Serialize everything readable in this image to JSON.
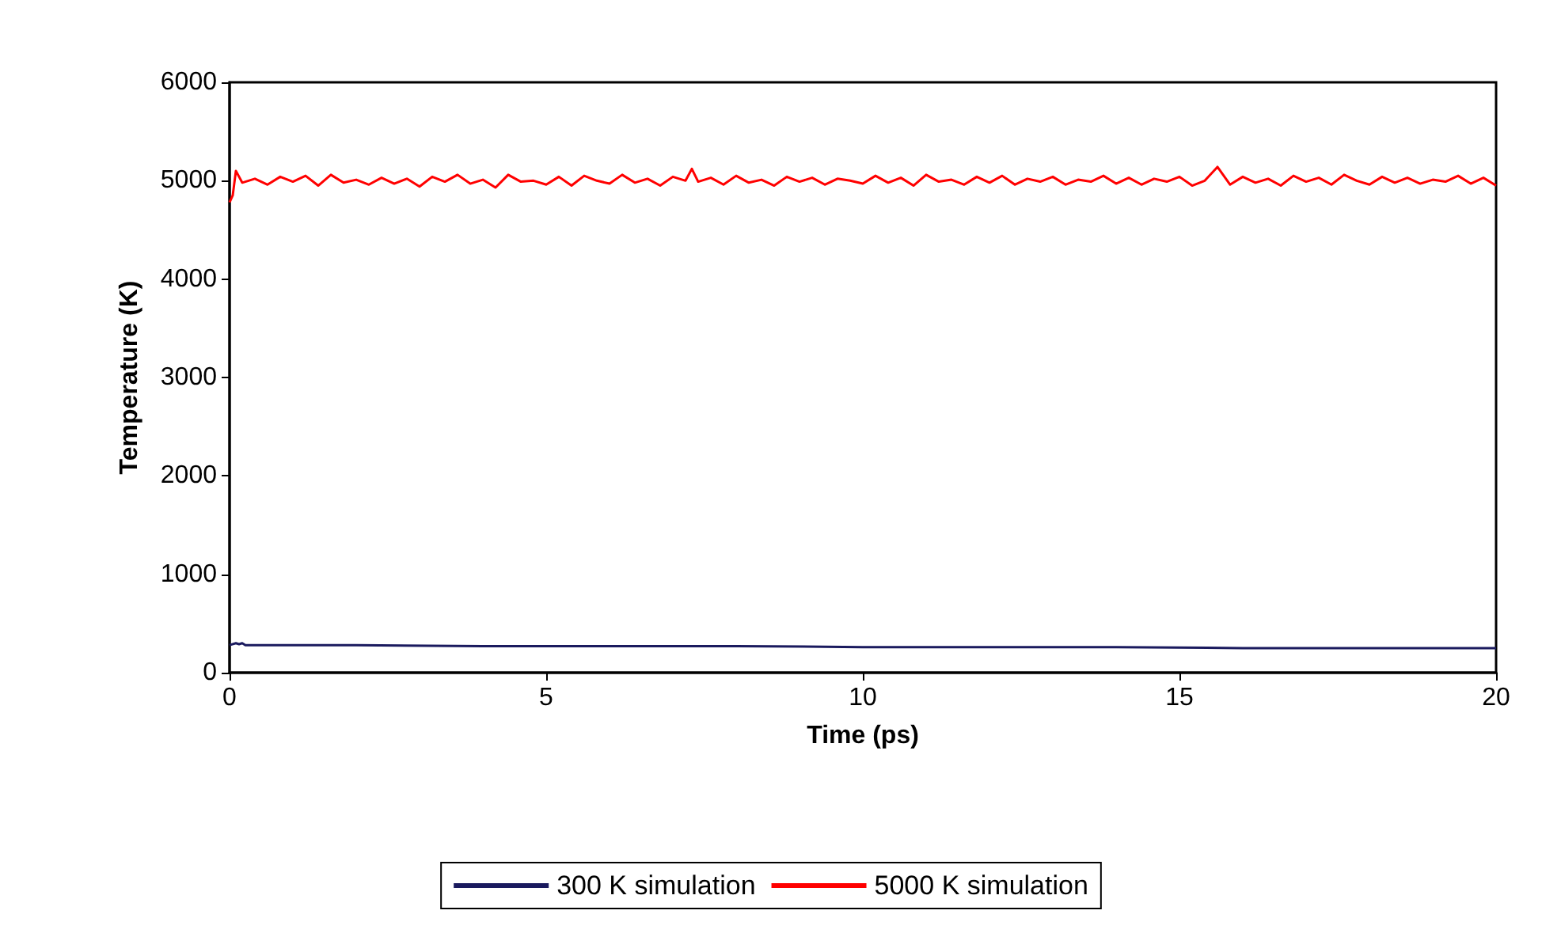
{
  "chart_data": {
    "type": "line",
    "xlabel": "Time (ps)",
    "ylabel": "Temperature (K)",
    "xlim": [
      0,
      20
    ],
    "ylim": [
      0,
      6000
    ],
    "xticks": [
      0,
      5,
      10,
      15,
      20
    ],
    "yticks": [
      0,
      1000,
      2000,
      3000,
      4000,
      5000,
      6000
    ],
    "grid": false,
    "legend": "bottom",
    "marker": "none",
    "line_style": "solid",
    "series": [
      {
        "name": "300 K simulation",
        "color": "#1a1a5e",
        "x": [
          0,
          0.1,
          0.15,
          0.2,
          0.25,
          0.3,
          1,
          2,
          4,
          6,
          8,
          10,
          12,
          14,
          16,
          18,
          20
        ],
        "values": [
          280,
          300,
          290,
          300,
          280,
          280,
          280,
          280,
          270,
          270,
          270,
          260,
          260,
          260,
          250,
          250,
          250
        ]
      },
      {
        "name": "5000 K simulation",
        "color": "#ff0000",
        "x": [
          0,
          0.05,
          0.1,
          0.2,
          0.4,
          0.6,
          0.8,
          1,
          1.2,
          1.4,
          1.6,
          1.8,
          2,
          2.2,
          2.4,
          2.6,
          2.8,
          3,
          3.2,
          3.4,
          3.6,
          3.8,
          4,
          4.2,
          4.4,
          4.6,
          4.8,
          5,
          5.2,
          5.4,
          5.6,
          5.8,
          6,
          6.2,
          6.4,
          6.6,
          6.8,
          7,
          7.2,
          7.3,
          7.4,
          7.6,
          7.8,
          8,
          8.2,
          8.4,
          8.6,
          8.8,
          9,
          9.2,
          9.4,
          9.6,
          9.8,
          10,
          10.2,
          10.4,
          10.6,
          10.8,
          11,
          11.2,
          11.4,
          11.6,
          11.8,
          12,
          12.2,
          12.4,
          12.6,
          12.8,
          13,
          13.2,
          13.4,
          13.6,
          13.8,
          14,
          14.2,
          14.4,
          14.6,
          14.8,
          15,
          15.2,
          15.4,
          15.6,
          15.8,
          16,
          16.2,
          16.4,
          16.6,
          16.8,
          17,
          17.2,
          17.4,
          17.6,
          17.8,
          18,
          18.2,
          18.4,
          18.6,
          18.8,
          19,
          19.2,
          19.4,
          19.6,
          19.8,
          20
        ],
        "values": [
          4780,
          4850,
          5100,
          4980,
          5020,
          4960,
          5040,
          4990,
          5050,
          4950,
          5060,
          4980,
          5010,
          4960,
          5030,
          4970,
          5020,
          4940,
          5040,
          4990,
          5060,
          4970,
          5010,
          4930,
          5060,
          4990,
          5000,
          4960,
          5040,
          4950,
          5050,
          5000,
          4970,
          5060,
          4980,
          5020,
          4950,
          5040,
          5000,
          5120,
          4990,
          5030,
          4960,
          5050,
          4980,
          5010,
          4950,
          5040,
          4990,
          5030,
          4960,
          5020,
          5000,
          4970,
          5050,
          4980,
          5030,
          4950,
          5060,
          4990,
          5010,
          4960,
          5040,
          4980,
          5050,
          4960,
          5020,
          4990,
          5040,
          4960,
          5010,
          4990,
          5050,
          4970,
          5030,
          4960,
          5020,
          4990,
          5040,
          4950,
          5000,
          5140,
          4960,
          5040,
          4980,
          5020,
          4950,
          5050,
          4990,
          5030,
          4960,
          5060,
          5000,
          4960,
          5040,
          4980,
          5030,
          4970,
          5010,
          4990,
          5050,
          4970,
          5030,
          4950
        ]
      }
    ]
  }
}
